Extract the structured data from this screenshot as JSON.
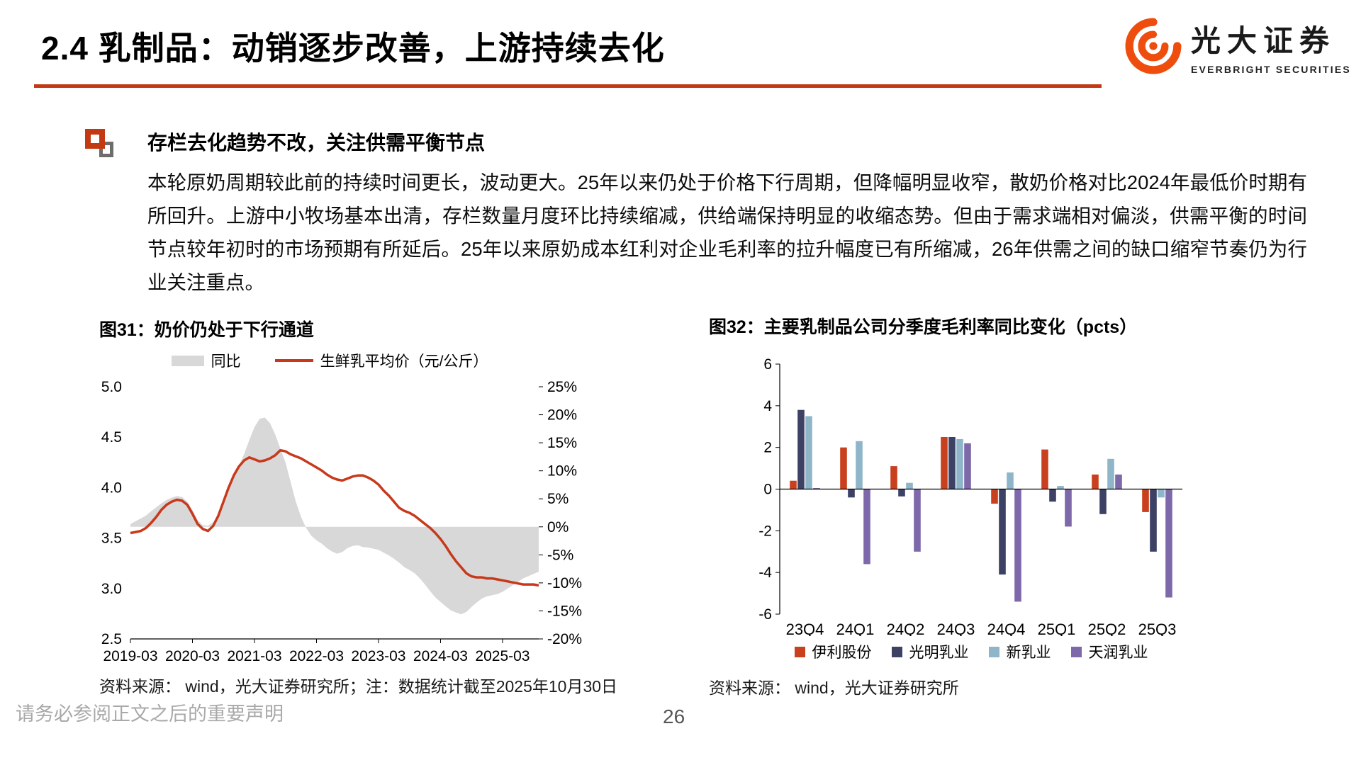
{
  "header": {
    "title": "2.4 乳制品：动销逐步改善，上游持续去化",
    "accent_color": "#C33A12",
    "logo": {
      "cn": "光大证券",
      "en": "EVERBRIGHT SECURITIES",
      "color": "#EE4D0D"
    }
  },
  "section": {
    "heading": "存栏去化趋势不改，关注供需平衡节点",
    "body": "本轮原奶周期较此前的持续时间更长，波动更大。25年以来仍处于价格下行周期，但降幅明显收窄，散奶价格对比2024年最低价时期有所回升。上游中小牧场基本出清，存栏数量月度环比持续缩减，供给端保持明显的收缩态势。但由于需求端相对偏淡，供需平衡的时间节点较年初时的市场预期有所延后。25年以来原奶成本红利对企业毛利率的拉升幅度已有所缩减，26年供需之间的缺口缩窄节奏仍为行业关注重点。"
  },
  "figure31": {
    "title": "图31：奶价仍处于下行通道",
    "source": "资料来源： wind，光大证券研究所；注：数据统计截至2025年10月30日"
  },
  "figure32": {
    "title": "图32：主要乳制品公司分季度毛利率同比变化（pcts）",
    "source": "资料来源： wind，光大证券研究所"
  },
  "footer": {
    "disclaimer": "请务必参阅正文之后的重要声明",
    "page": "26"
  },
  "chart_data": [
    {
      "type": "line",
      "title": "图31：奶价仍处于下行通道",
      "legend": [
        {
          "name": "同比",
          "swatch": "area",
          "color": "#D8D8D8"
        },
        {
          "name": "生鲜乳平均价（元/公斤）",
          "swatch": "line",
          "color": "#C8391B"
        }
      ],
      "left_axis": {
        "label": "生鲜乳平均价（元/公斤）",
        "min": 2.5,
        "max": 5.0,
        "ticks": [
          5.0,
          4.5,
          4.0,
          3.5,
          3.0,
          2.5
        ]
      },
      "right_axis": {
        "label": "同比",
        "min": -20,
        "max": 25,
        "ticks": [
          25,
          20,
          15,
          10,
          5,
          0,
          -5,
          -10,
          -15,
          -20
        ]
      },
      "x_ticks": [
        "2019-03",
        "2020-03",
        "2021-03",
        "2022-03",
        "2023-03",
        "2024-03",
        "2025-03"
      ],
      "x_tick_indices": [
        0,
        12,
        24,
        36,
        48,
        60,
        72
      ],
      "months": [
        "2019-03",
        "2019-04",
        "2019-05",
        "2019-06",
        "2019-07",
        "2019-08",
        "2019-09",
        "2019-10",
        "2019-11",
        "2019-12",
        "2020-01",
        "2020-02",
        "2020-03",
        "2020-04",
        "2020-05",
        "2020-06",
        "2020-07",
        "2020-08",
        "2020-09",
        "2020-10",
        "2020-11",
        "2020-12",
        "2021-01",
        "2021-02",
        "2021-03",
        "2021-04",
        "2021-05",
        "2021-06",
        "2021-07",
        "2021-08",
        "2021-09",
        "2021-10",
        "2021-11",
        "2021-12",
        "2022-01",
        "2022-02",
        "2022-03",
        "2022-04",
        "2022-05",
        "2022-06",
        "2022-07",
        "2022-08",
        "2022-09",
        "2022-10",
        "2022-11",
        "2022-12",
        "2023-01",
        "2023-02",
        "2023-03",
        "2023-04",
        "2023-05",
        "2023-06",
        "2023-07",
        "2023-08",
        "2023-09",
        "2023-10",
        "2023-11",
        "2023-12",
        "2024-01",
        "2024-02",
        "2024-03",
        "2024-04",
        "2024-05",
        "2024-06",
        "2024-07",
        "2024-08",
        "2024-09",
        "2024-10",
        "2024-11",
        "2024-12",
        "2025-01",
        "2025-02",
        "2025-03",
        "2025-04",
        "2025-05",
        "2025-06",
        "2025-07",
        "2025-08",
        "2025-09",
        "2025-10"
      ],
      "series_price": {
        "name": "生鲜乳平均价（元/公斤）",
        "color": "#C8391B",
        "values": [
          3.55,
          3.56,
          3.57,
          3.6,
          3.65,
          3.71,
          3.78,
          3.83,
          3.86,
          3.88,
          3.87,
          3.83,
          3.74,
          3.64,
          3.59,
          3.57,
          3.62,
          3.72,
          3.86,
          4.0,
          4.12,
          4.21,
          4.27,
          4.3,
          4.28,
          4.26,
          4.27,
          4.29,
          4.32,
          4.37,
          4.36,
          4.33,
          4.31,
          4.29,
          4.26,
          4.23,
          4.2,
          4.17,
          4.13,
          4.1,
          4.08,
          4.07,
          4.09,
          4.11,
          4.12,
          4.12,
          4.1,
          4.07,
          4.03,
          3.97,
          3.92,
          3.86,
          3.8,
          3.77,
          3.75,
          3.72,
          3.68,
          3.64,
          3.6,
          3.55,
          3.49,
          3.42,
          3.34,
          3.27,
          3.21,
          3.15,
          3.12,
          3.11,
          3.11,
          3.1,
          3.1,
          3.09,
          3.08,
          3.07,
          3.06,
          3.05,
          3.04,
          3.04,
          3.04,
          3.03
        ]
      },
      "series_yoy": {
        "name": "同比",
        "color": "#D8D8D8",
        "unit": "%",
        "values": [
          0.5,
          1.0,
          1.5,
          2.0,
          2.8,
          3.5,
          4.2,
          4.8,
          5.2,
          5.5,
          5.3,
          4.5,
          3.0,
          1.2,
          0.3,
          0.2,
          0.8,
          2.2,
          4.5,
          7.0,
          9.0,
          10.8,
          13.0,
          15.5,
          17.8,
          19.3,
          19.5,
          18.5,
          16.5,
          14.0,
          11.5,
          8.0,
          4.5,
          1.8,
          -0.2,
          -1.6,
          -2.4,
          -3.0,
          -3.8,
          -4.4,
          -4.8,
          -4.5,
          -3.8,
          -3.4,
          -3.3,
          -3.6,
          -3.7,
          -3.9,
          -4.1,
          -4.6,
          -5.1,
          -5.7,
          -6.4,
          -7.2,
          -7.7,
          -8.3,
          -9.2,
          -10.3,
          -11.5,
          -12.6,
          -13.4,
          -14.2,
          -14.9,
          -15.3,
          -15.6,
          -15.2,
          -14.3,
          -13.5,
          -12.8,
          -12.4,
          -12.2,
          -12.0,
          -11.6,
          -11.0,
          -10.4,
          -9.8,
          -9.2,
          -8.8,
          -8.4,
          -8.0
        ]
      }
    },
    {
      "type": "bar",
      "title": "图32：主要乳制品公司分季度毛利率同比变化（pcts）",
      "categories": [
        "23Q4",
        "24Q1",
        "24Q2",
        "24Q3",
        "24Q4",
        "25Q1",
        "25Q2",
        "25Q3"
      ],
      "series": [
        {
          "name": "伊利股份",
          "color": "#C8401E",
          "values": [
            0.4,
            2.0,
            1.1,
            2.5,
            -0.7,
            1.9,
            0.7,
            -1.1
          ]
        },
        {
          "name": "光明乳业",
          "color": "#3D4265",
          "values": [
            3.8,
            -0.4,
            -0.35,
            2.5,
            -4.1,
            -0.6,
            -1.2,
            -3.0
          ]
        },
        {
          "name": "新乳业",
          "color": "#8FB5C9",
          "values": [
            3.5,
            2.3,
            0.3,
            2.4,
            0.8,
            0.15,
            1.45,
            -0.4
          ]
        },
        {
          "name": "天润乳业",
          "color": "#7D68A9",
          "values": [
            0.05,
            -3.6,
            -3.0,
            2.2,
            -5.4,
            -1.8,
            0.7,
            -5.2
          ]
        }
      ],
      "ylim": [
        -6,
        6
      ],
      "y_ticks": [
        6,
        4,
        2,
        0,
        -2,
        -4,
        -6
      ],
      "legend_position": "bottom",
      "grid": false
    }
  ]
}
